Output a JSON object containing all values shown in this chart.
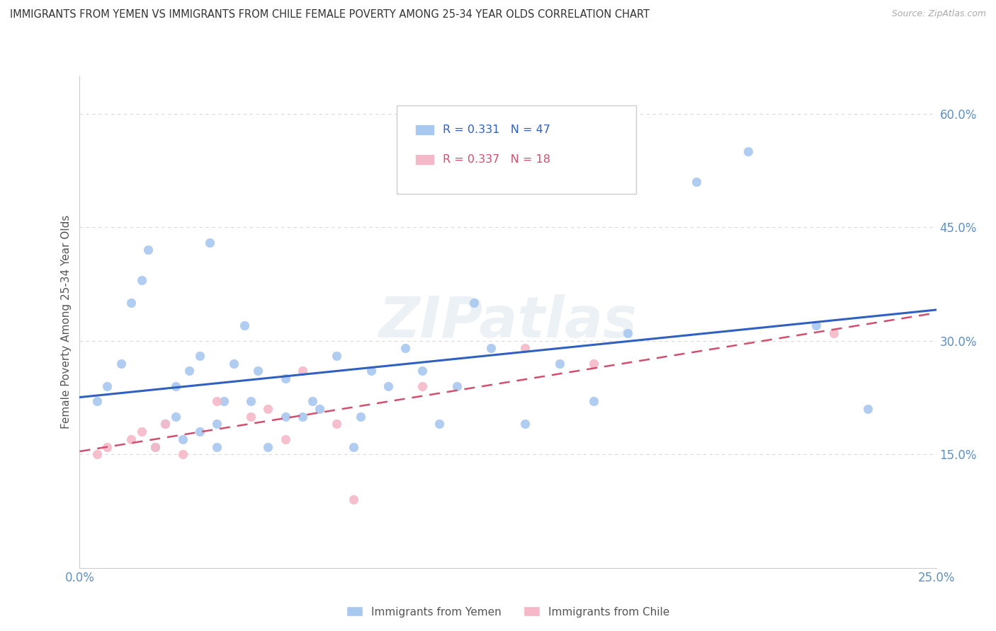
{
  "title": "IMMIGRANTS FROM YEMEN VS IMMIGRANTS FROM CHILE FEMALE POVERTY AMONG 25-34 YEAR OLDS CORRELATION CHART",
  "source": "Source: ZipAtlas.com",
  "ylabel": "Female Poverty Among 25-34 Year Olds",
  "xlim": [
    0.0,
    0.25
  ],
  "ylim": [
    0.0,
    0.65
  ],
  "ytick_labels_right": [
    "15.0%",
    "30.0%",
    "45.0%",
    "60.0%"
  ],
  "ytick_vals_right": [
    0.15,
    0.3,
    0.45,
    0.6
  ],
  "yemen_color": "#a8c8f0",
  "chile_color": "#f5b8c8",
  "yemen_line_color": "#3060c0",
  "chile_line_color": "#d05070",
  "legend_R_yemen": "R = 0.331",
  "legend_N_yemen": "N = 47",
  "legend_R_chile": "R = 0.337",
  "legend_N_chile": "N = 18",
  "yemen_scatter_x": [
    0.005,
    0.008,
    0.012,
    0.015,
    0.018,
    0.02,
    0.022,
    0.025,
    0.028,
    0.028,
    0.03,
    0.032,
    0.035,
    0.035,
    0.038,
    0.04,
    0.04,
    0.042,
    0.045,
    0.048,
    0.05,
    0.052,
    0.055,
    0.06,
    0.06,
    0.065,
    0.068,
    0.07,
    0.075,
    0.08,
    0.082,
    0.085,
    0.09,
    0.095,
    0.1,
    0.105,
    0.11,
    0.115,
    0.12,
    0.13,
    0.14,
    0.15,
    0.16,
    0.18,
    0.195,
    0.215,
    0.23
  ],
  "yemen_scatter_y": [
    0.22,
    0.24,
    0.27,
    0.35,
    0.38,
    0.42,
    0.16,
    0.19,
    0.2,
    0.24,
    0.17,
    0.26,
    0.18,
    0.28,
    0.43,
    0.16,
    0.19,
    0.22,
    0.27,
    0.32,
    0.22,
    0.26,
    0.16,
    0.2,
    0.25,
    0.2,
    0.22,
    0.21,
    0.28,
    0.16,
    0.2,
    0.26,
    0.24,
    0.29,
    0.26,
    0.19,
    0.24,
    0.35,
    0.29,
    0.19,
    0.27,
    0.22,
    0.31,
    0.51,
    0.55,
    0.32,
    0.21
  ],
  "chile_scatter_x": [
    0.005,
    0.008,
    0.015,
    0.018,
    0.022,
    0.025,
    0.03,
    0.04,
    0.05,
    0.055,
    0.06,
    0.065,
    0.075,
    0.08,
    0.1,
    0.13,
    0.15,
    0.22
  ],
  "chile_scatter_y": [
    0.15,
    0.16,
    0.17,
    0.18,
    0.16,
    0.19,
    0.15,
    0.22,
    0.2,
    0.21,
    0.17,
    0.26,
    0.19,
    0.09,
    0.24,
    0.29,
    0.27,
    0.31
  ],
  "background_color": "#ffffff",
  "grid_color": "#d8d8d8",
  "tick_color": "#6090c0",
  "axis_label_color": "#555555",
  "title_color": "#333333"
}
